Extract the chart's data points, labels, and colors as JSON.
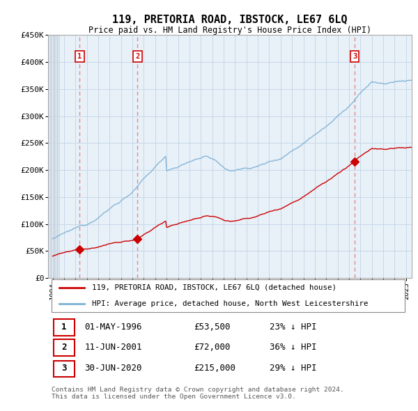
{
  "title": "119, PRETORIA ROAD, IBSTOCK, LE67 6LQ",
  "subtitle": "Price paid vs. HM Land Registry's House Price Index (HPI)",
  "legend_line1": "119, PRETORIA ROAD, IBSTOCK, LE67 6LQ (detached house)",
  "legend_line2": "HPI: Average price, detached house, North West Leicestershire",
  "sale_points": [
    {
      "label": "1",
      "year": 1996.37,
      "price": 53500,
      "date_str": "01-MAY-1996",
      "price_str": "£53,500",
      "hpi_str": "23% ↓ HPI"
    },
    {
      "label": "2",
      "year": 2001.44,
      "price": 72000,
      "date_str": "11-JUN-2001",
      "price_str": "£72,000",
      "hpi_str": "36% ↓ HPI"
    },
    {
      "label": "3",
      "year": 2020.5,
      "price": 215000,
      "date_str": "30-JUN-2020",
      "price_str": "£215,000",
      "hpi_str": "29% ↓ HPI"
    }
  ],
  "red_color": "#cc0000",
  "blue_color": "#7ab0d4",
  "vline_color": "#e08080",
  "grid_color": "#c8d8e8",
  "bg_color": "#e8f0f8",
  "hatch_color": "#c0ccd8",
  "ylabel_ticks": [
    0,
    50000,
    100000,
    150000,
    200000,
    250000,
    300000,
    350000,
    400000,
    450000
  ],
  "ylabel_labels": [
    "£0",
    "£50K",
    "£100K",
    "£150K",
    "£200K",
    "£250K",
    "£300K",
    "£350K",
    "£400K",
    "£450K"
  ],
  "xmin": 1993.6,
  "xmax": 2025.5,
  "ymin": 0,
  "ymax": 450000,
  "footnote": "Contains HM Land Registry data © Crown copyright and database right 2024.\nThis data is licensed under the Open Government Licence v3.0."
}
